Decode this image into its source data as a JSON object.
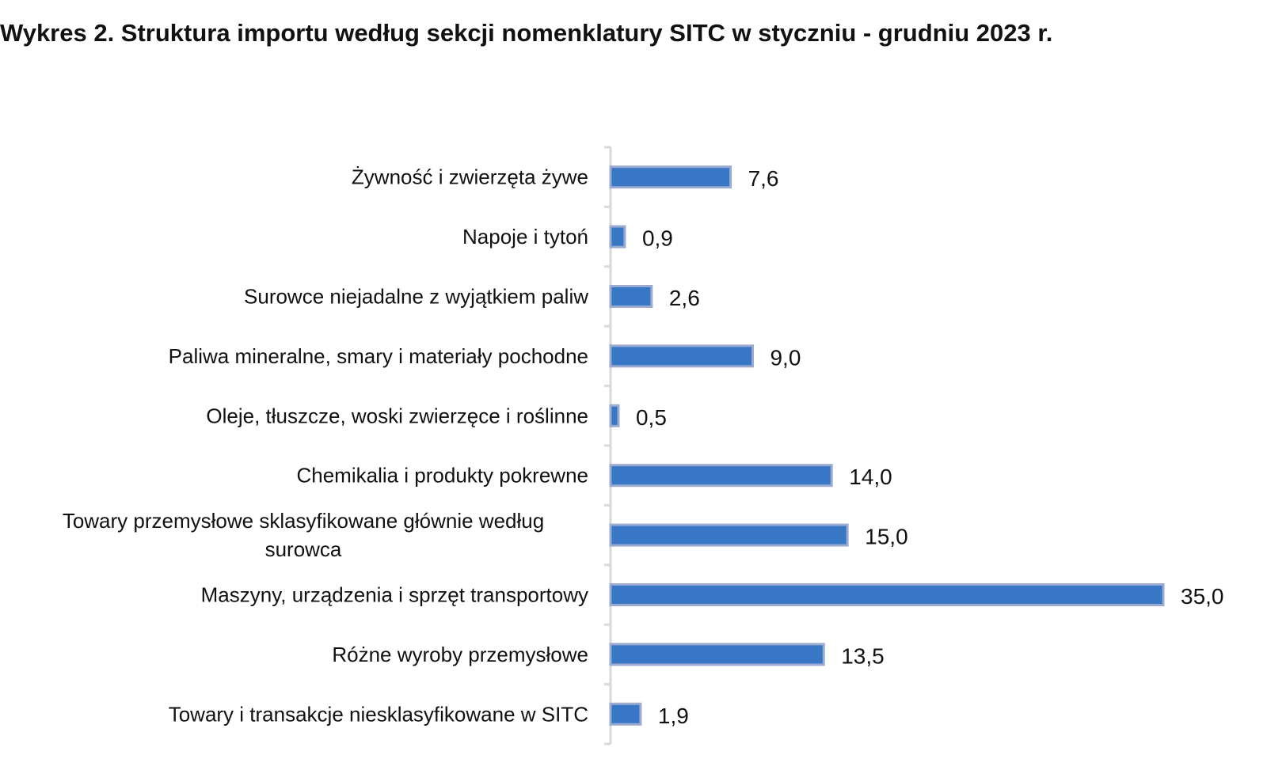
{
  "chart_data": {
    "type": "bar",
    "orientation": "horizontal",
    "title": "Wykres 2. Struktura importu według sekcji nomenklatury SITC w styczniu - grudniu 2023 r.",
    "xlabel": "",
    "ylabel": "",
    "xlim": [
      0,
      35
    ],
    "grid": false,
    "legend": "none",
    "bar_color": "#3876C6",
    "bar_border_color": "#9AAAD0",
    "axis_color": "#D9D9D9",
    "categories": [
      [
        "Żywność i zwierzęta żywe"
      ],
      [
        "Napoje i tytoń"
      ],
      [
        "Surowce niejadalne z wyjątkiem paliw"
      ],
      [
        "Paliwa mineralne, smary i materiały  pochodne"
      ],
      [
        "Oleje, tłuszcze, woski zwierzęce i roślinne"
      ],
      [
        "Chemikalia i produkty pokrewne"
      ],
      [
        "Towary przemysłowe sklasyfikowane głównie według",
        "surowca"
      ],
      [
        "Maszyny, urządzenia i sprzęt transportowy"
      ],
      [
        "Różne wyroby przemysłowe"
      ],
      [
        "Towary i transakcje niesklasyfikowane w SITC"
      ]
    ],
    "values": [
      7.6,
      0.9,
      2.6,
      9.0,
      0.5,
      14.0,
      15.0,
      35.0,
      13.5,
      1.9
    ],
    "value_labels": [
      "7,6",
      "0,9",
      "2,6",
      "9,0",
      "0,5",
      "14,0",
      "15,0",
      "35,0",
      "13,5",
      "1,9"
    ]
  }
}
